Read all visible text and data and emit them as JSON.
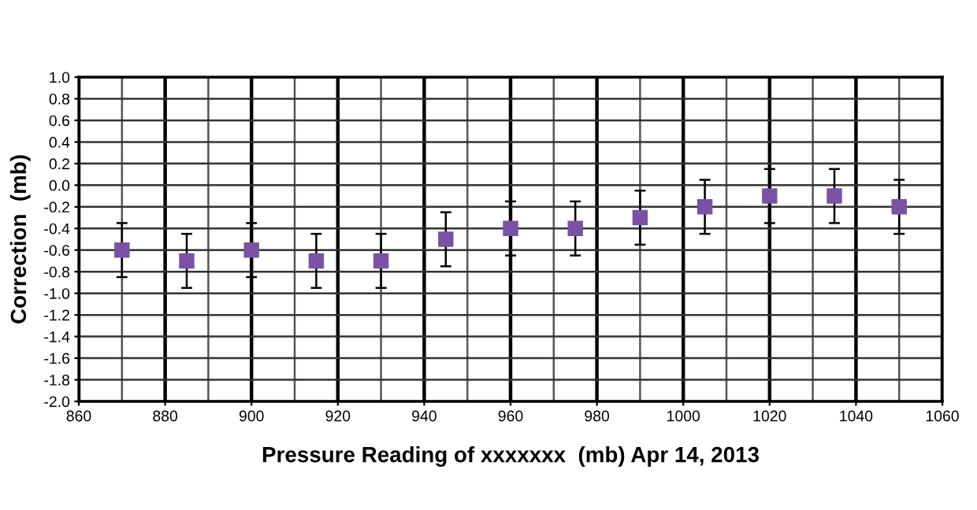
{
  "chart_data": {
    "type": "scatter",
    "xlabel": "Pressure Reading of xxxxxxx  (mb) Apr 14, 2013",
    "ylabel": "Correction  (mb)",
    "x": [
      870,
      885,
      900,
      915,
      930,
      945,
      960,
      975,
      990,
      1005,
      1020,
      1035,
      1050
    ],
    "series": [
      {
        "color": "#7b52a3",
        "values": [
          -0.6,
          -0.7,
          -0.6,
          -0.7,
          -0.7,
          -0.5,
          -0.4,
          -0.4,
          -0.3,
          -0.2,
          -0.1,
          -0.1,
          -0.2
        ],
        "errors": [
          0.25,
          0.25,
          0.25,
          0.25,
          0.25,
          0.25,
          0.25,
          0.25,
          0.25,
          0.25,
          0.25,
          0.25,
          0.25
        ]
      }
    ],
    "xlim": [
      860,
      1060
    ],
    "xticks": [
      860,
      880,
      900,
      920,
      940,
      960,
      980,
      1000,
      1020,
      1040,
      1060
    ],
    "ylim": [
      -2.0,
      1.0
    ],
    "yticks": [
      {
        "value": 1,
        "label": "1.0"
      },
      0.8,
      0.6,
      0.4,
      0.2,
      {
        "value": 0,
        "label": "0.0"
      },
      -0.2,
      -0.4,
      -0.6,
      -0.8,
      {
        "value": -1,
        "label": "-1.0"
      },
      -1.2,
      -1.4,
      -1.6,
      -1.8,
      {
        "value": -2,
        "label": "-2.0"
      }
    ],
    "grid": true,
    "marker": "square",
    "legend": false
  }
}
